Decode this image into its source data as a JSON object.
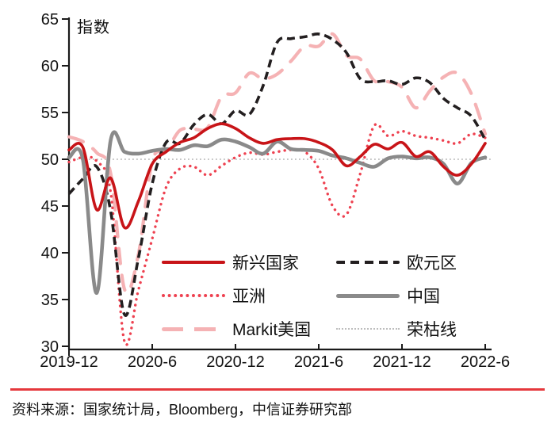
{
  "chart_data": {
    "type": "line",
    "unit_label": "指数",
    "x_tick_labels": [
      "2019-12",
      "2020-6",
      "2020-12",
      "2021-6",
      "2021-12",
      "2022-6"
    ],
    "y_ticks": [
      30,
      35,
      40,
      45,
      50,
      55,
      60,
      65
    ],
    "ylim": [
      29.7,
      65
    ],
    "grid": "off",
    "legend_position": "inside-bottom-center",
    "x_months": [
      "2019-12",
      "2020-01",
      "2020-02",
      "2020-03",
      "2020-04",
      "2020-05",
      "2020-06",
      "2020-07",
      "2020-08",
      "2020-09",
      "2020-10",
      "2020-11",
      "2020-12",
      "2021-01",
      "2021-02",
      "2021-03",
      "2021-04",
      "2021-05",
      "2021-06",
      "2021-07",
      "2021-08",
      "2021-09",
      "2021-10",
      "2021-11",
      "2021-12",
      "2022-01",
      "2022-02",
      "2022-03",
      "2022-04",
      "2022-05",
      "2022-06"
    ],
    "series": [
      {
        "name": "新兴国家",
        "color": "#c81418",
        "style": "solid",
        "width": 3.6,
        "values": [
          51.0,
          51.3,
          44.6,
          48.0,
          42.7,
          45.5,
          49.5,
          50.8,
          51.8,
          52.3,
          53.3,
          53.8,
          53.3,
          52.3,
          51.7,
          52.1,
          52.2,
          52.2,
          51.8,
          51.0,
          49.3,
          50.3,
          51.6,
          51.1,
          51.8,
          50.3,
          50.8,
          49.2,
          48.3,
          49.5,
          51.7
        ]
      },
      {
        "name": "欧元区",
        "color": "#231f20",
        "style": "dashed",
        "width": 3.6,
        "values": [
          46.3,
          47.9,
          49.2,
          44.5,
          33.4,
          39.4,
          47.4,
          51.8,
          51.7,
          53.7,
          54.8,
          53.8,
          55.2,
          54.8,
          57.9,
          62.5,
          62.9,
          63.1,
          63.4,
          62.8,
          61.4,
          58.6,
          58.3,
          58.4,
          58.0,
          58.7,
          58.2,
          56.5,
          55.5,
          54.6,
          52.1
        ]
      },
      {
        "name": "亚洲",
        "color": "#ee4150",
        "style": "dotted",
        "width": 3.4,
        "values": [
          49.7,
          50.2,
          49.8,
          46.5,
          30.5,
          36.0,
          41.5,
          47.0,
          49.0,
          49.2,
          48.3,
          49.3,
          50.2,
          50.7,
          50.5,
          50.8,
          51.0,
          50.8,
          49.0,
          45.0,
          44.1,
          48.5,
          53.6,
          52.5,
          53.0,
          52.5,
          52.3,
          52.0,
          51.7,
          52.7,
          52.3
        ]
      },
      {
        "name": "中国",
        "color": "#8a8a8a",
        "style": "solid",
        "width": 4.6,
        "values": [
          50.2,
          50.0,
          35.7,
          52.0,
          50.8,
          50.6,
          50.9,
          51.1,
          51.0,
          51.5,
          51.4,
          52.1,
          51.9,
          51.3,
          50.6,
          51.9,
          51.1,
          51.0,
          50.9,
          50.4,
          50.1,
          49.6,
          49.2,
          50.1,
          50.3,
          50.1,
          50.2,
          49.5,
          47.4,
          49.6,
          50.2
        ]
      },
      {
        "name": "Markit美国",
        "color": "#f5b2b4",
        "style": "longdash",
        "width": 4.2,
        "values": [
          52.4,
          51.9,
          50.7,
          48.5,
          36.1,
          39.8,
          49.8,
          50.9,
          53.1,
          53.2,
          53.4,
          56.7,
          57.1,
          59.2,
          58.6,
          59.1,
          60.5,
          62.1,
          62.1,
          63.4,
          61.1,
          60.7,
          58.4,
          58.3,
          57.7,
          55.5,
          57.3,
          58.8,
          59.2,
          57.0,
          52.7
        ]
      },
      {
        "name": "荣枯线",
        "color": "#bdbdbd",
        "style": "finedot",
        "width": 1.7,
        "constant": 50
      }
    ]
  },
  "source": {
    "text": "资料来源：国家统计局，Bloomberg，中信证券研究部"
  },
  "divider_color": "#e5383c"
}
